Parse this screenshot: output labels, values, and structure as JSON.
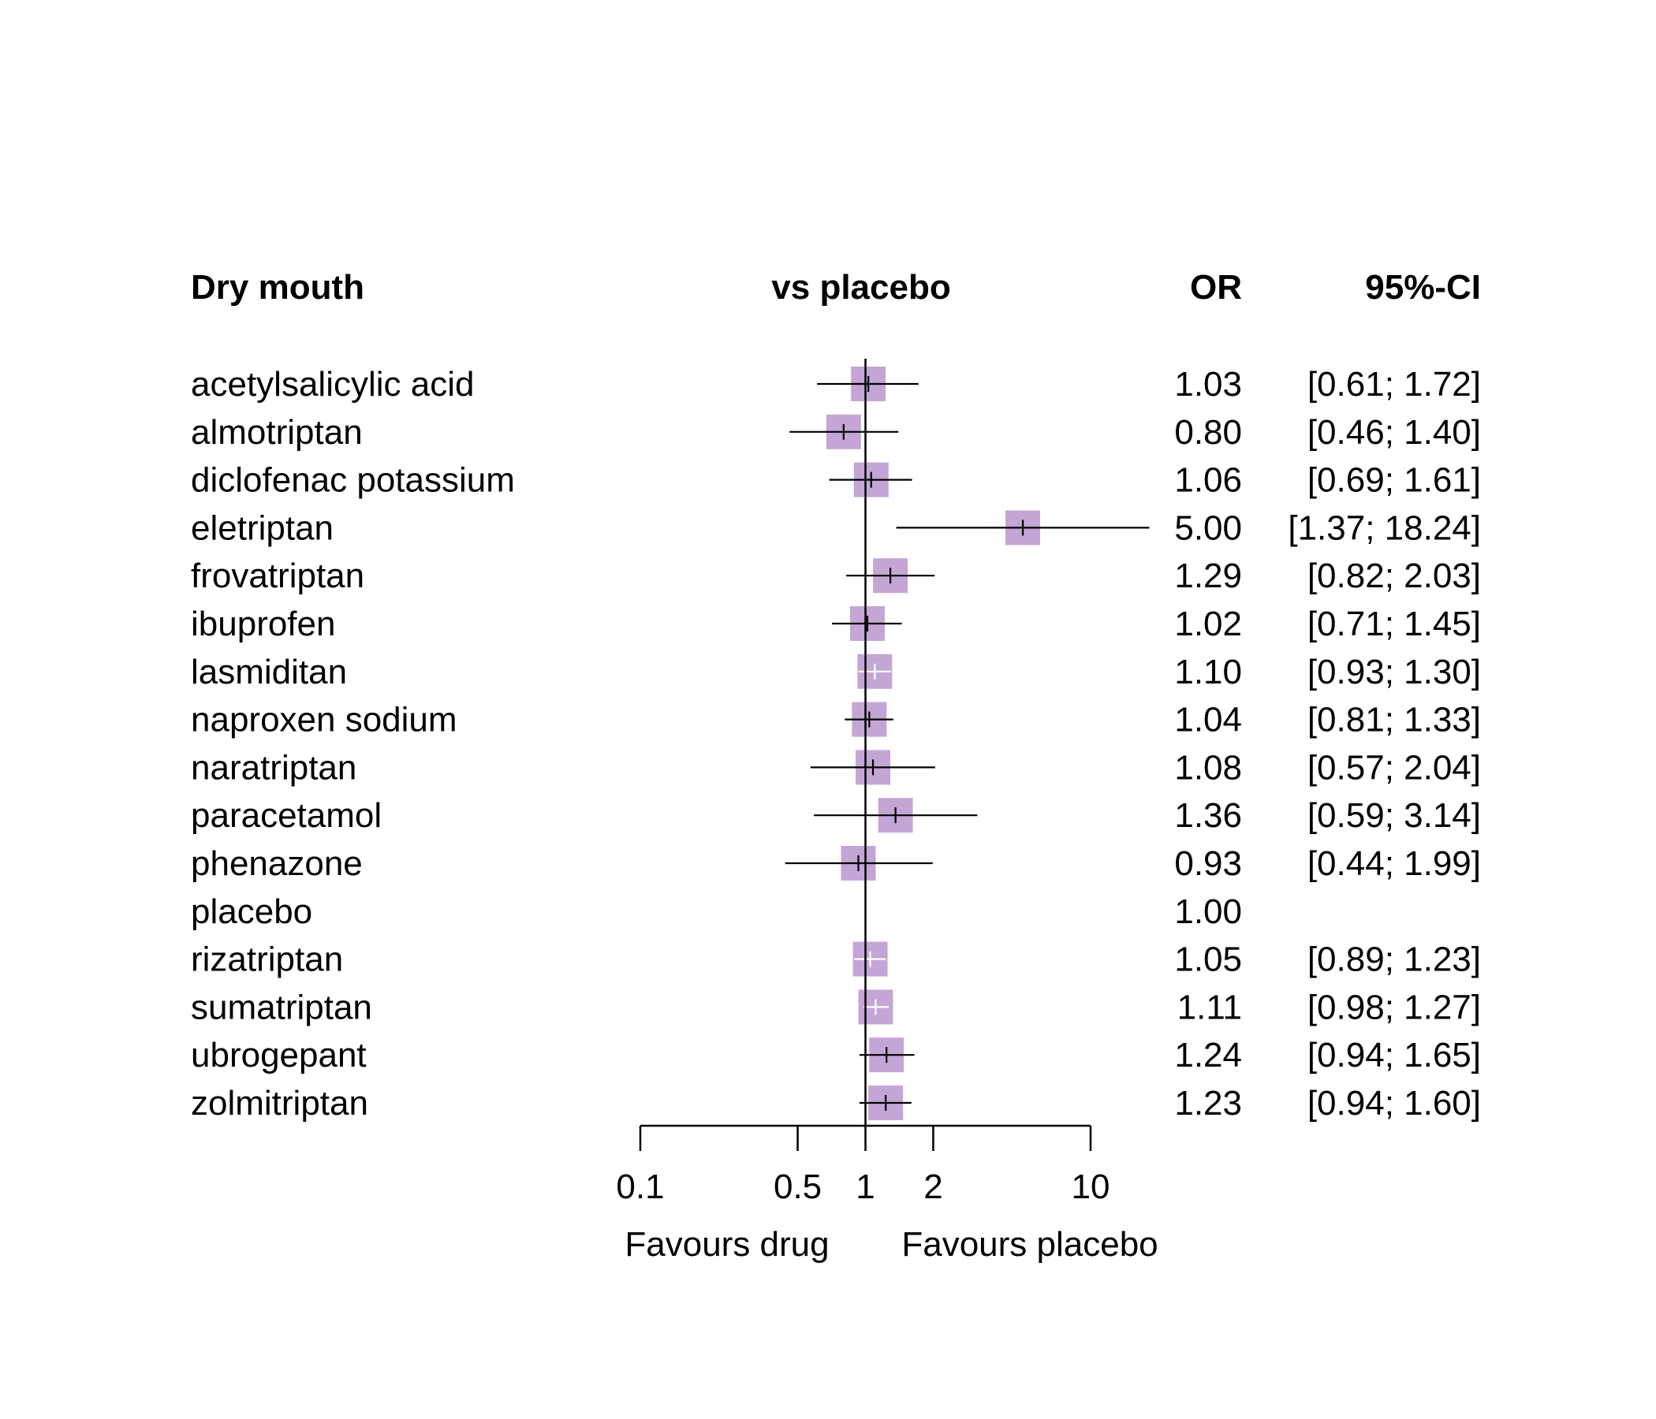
{
  "chart_data": {
    "type": "forest",
    "headers": {
      "title": "Dry mouth",
      "comparison": "vs placebo",
      "estimate": "OR",
      "interval": "95%-CI"
    },
    "rows": [
      {
        "label": "acetylsalicylic acid",
        "or": 1.03,
        "lower": 0.61,
        "upper": 1.72,
        "or_text": "1.03",
        "ci_text": "[0.61;  1.72]"
      },
      {
        "label": "almotriptan",
        "or": 0.8,
        "lower": 0.46,
        "upper": 1.4,
        "or_text": "0.80",
        "ci_text": "[0.46;  1.40]"
      },
      {
        "label": "diclofenac potassium",
        "or": 1.06,
        "lower": 0.69,
        "upper": 1.61,
        "or_text": "1.06",
        "ci_text": "[0.69;  1.61]"
      },
      {
        "label": "eletriptan",
        "or": 5.0,
        "lower": 1.37,
        "upper": 18.24,
        "or_text": "5.00",
        "ci_text": "[1.37; 18.24]"
      },
      {
        "label": "frovatriptan",
        "or": 1.29,
        "lower": 0.82,
        "upper": 2.03,
        "or_text": "1.29",
        "ci_text": "[0.82;  2.03]"
      },
      {
        "label": "ibuprofen",
        "or": 1.02,
        "lower": 0.71,
        "upper": 1.45,
        "or_text": "1.02",
        "ci_text": "[0.71;  1.45]"
      },
      {
        "label": "lasmiditan",
        "or": 1.1,
        "lower": 0.93,
        "upper": 1.3,
        "or_text": "1.10",
        "ci_text": "[0.93;  1.30]"
      },
      {
        "label": "naproxen sodium",
        "or": 1.04,
        "lower": 0.81,
        "upper": 1.33,
        "or_text": "1.04",
        "ci_text": "[0.81;  1.33]"
      },
      {
        "label": "naratriptan",
        "or": 1.08,
        "lower": 0.57,
        "upper": 2.04,
        "or_text": "1.08",
        "ci_text": "[0.57;  2.04]"
      },
      {
        "label": "paracetamol",
        "or": 1.36,
        "lower": 0.59,
        "upper": 3.14,
        "or_text": "1.36",
        "ci_text": "[0.59;  3.14]"
      },
      {
        "label": "phenazone",
        "or": 0.93,
        "lower": 0.44,
        "upper": 1.99,
        "or_text": "0.93",
        "ci_text": "[0.44;  1.99]"
      },
      {
        "label": "placebo",
        "or": 1.0,
        "lower": null,
        "upper": null,
        "or_text": "1.00",
        "ci_text": ""
      },
      {
        "label": "rizatriptan",
        "or": 1.05,
        "lower": 0.89,
        "upper": 1.23,
        "or_text": "1.05",
        "ci_text": "[0.89;  1.23]"
      },
      {
        "label": "sumatriptan",
        "or": 1.11,
        "lower": 0.98,
        "upper": 1.27,
        "or_text": "1.11",
        "ci_text": "[0.98;  1.27]"
      },
      {
        "label": "ubrogepant",
        "or": 1.24,
        "lower": 0.94,
        "upper": 1.65,
        "or_text": "1.24",
        "ci_text": "[0.94;  1.65]"
      },
      {
        "label": "zolmitriptan",
        "or": 1.23,
        "lower": 0.94,
        "upper": 1.6,
        "or_text": "1.23",
        "ci_text": "[0.94;  1.60]"
      }
    ],
    "x_axis": {
      "scale": "log",
      "range": [
        0.1,
        10
      ],
      "ticks": [
        0.1,
        0.5,
        1,
        2,
        10
      ],
      "tick_labels": [
        "0.1",
        "0.5",
        "1",
        "2",
        "10"
      ],
      "reference_line": 1,
      "label_left": "Favours drug",
      "label_right": "Favours placebo"
    },
    "marker_color": "#c3a6d6",
    "line_color": "#000000",
    "inner_line_color": "#ffffff"
  }
}
